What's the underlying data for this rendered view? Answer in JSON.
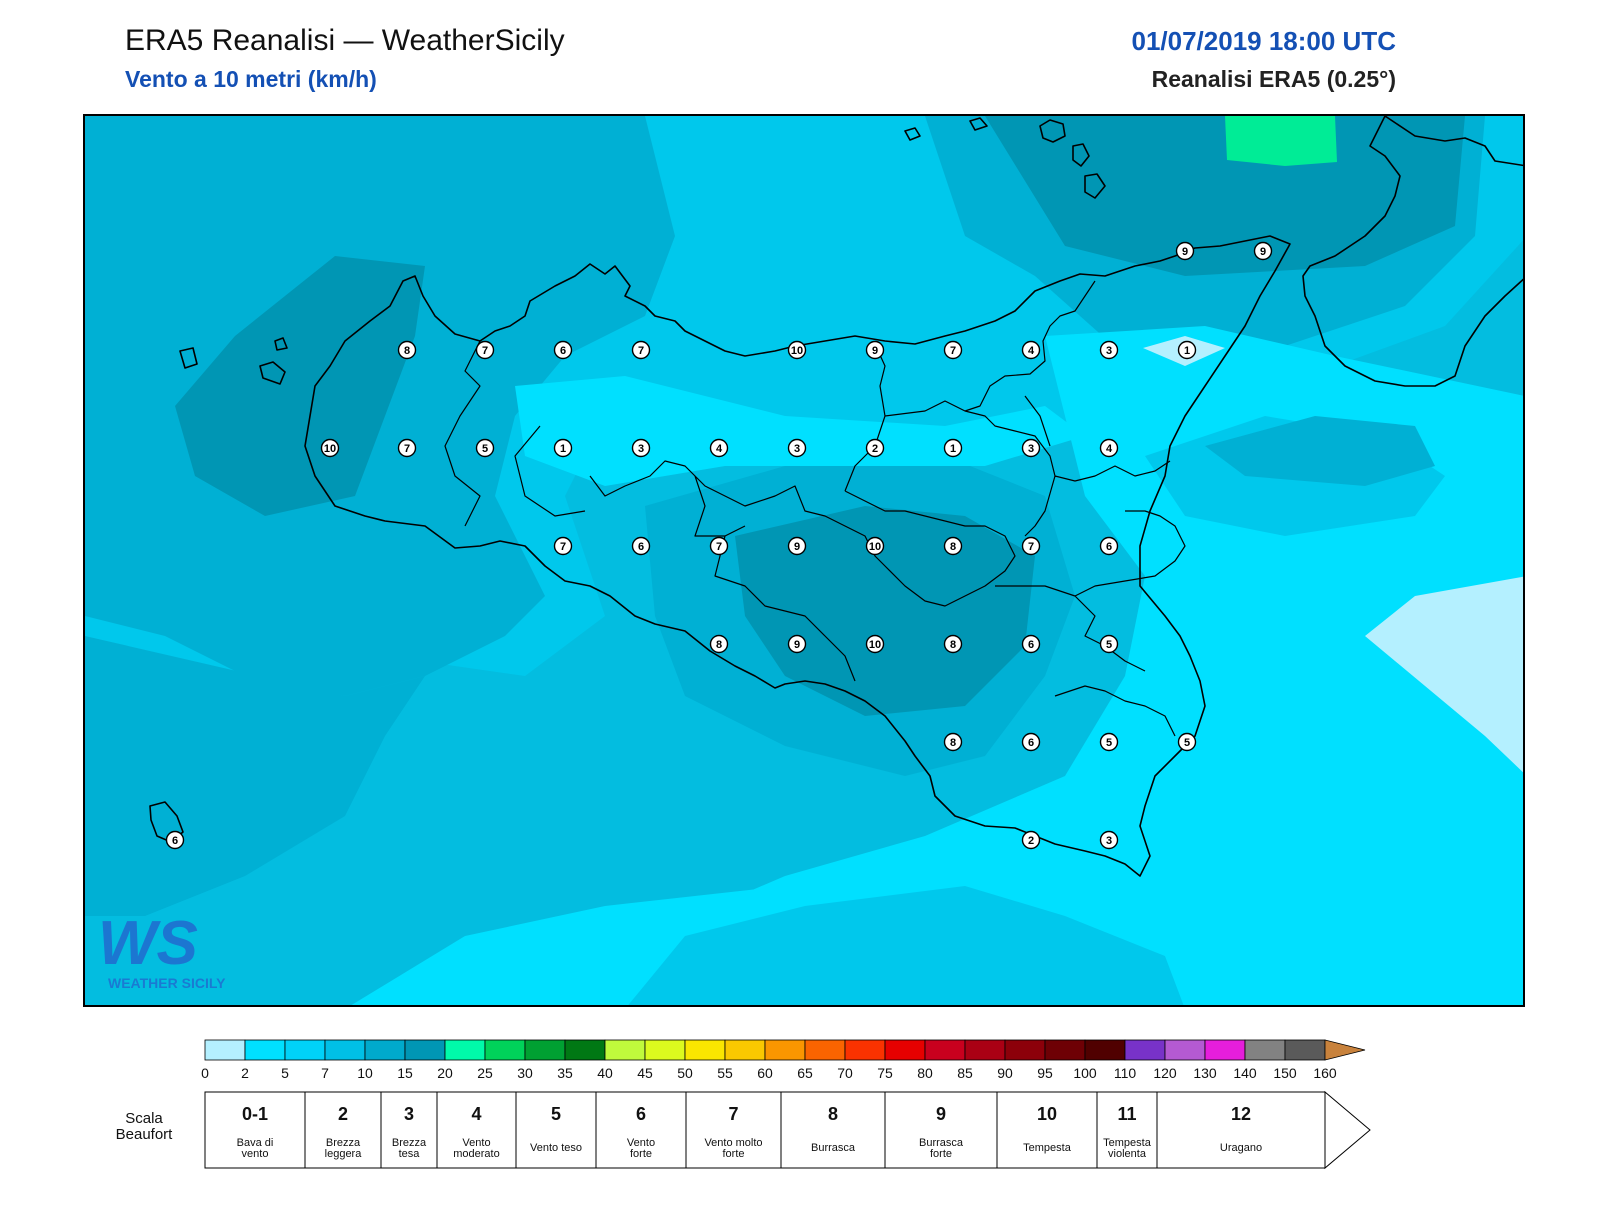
{
  "header": {
    "title": "ERA5 Reanalisi — WeatherSicily",
    "subtitle": "Vento a 10 metri (km/h)",
    "datetime": "01/07/2019 18:00 UTC",
    "source": "Reanalisi ERA5 (0.25°)"
  },
  "logo": {
    "mark": "WS",
    "text": "WEATHER SICILY"
  },
  "colors": {
    "sea_base": "#03bde0",
    "calm": "#b4f0ff",
    "light": "#00e0ff",
    "moderate": "#00c8ec",
    "fresh": "#00b0d4",
    "strong": "#0096b4",
    "gale": "#00ec96",
    "coastline": "#000000"
  },
  "stations": [
    {
      "v": "8"
    },
    {
      "v": "7"
    },
    {
      "v": "6"
    },
    {
      "v": "7"
    },
    {
      "v": "10"
    },
    {
      "v": "9"
    },
    {
      "v": "7"
    },
    {
      "v": "4"
    },
    {
      "v": "3"
    },
    {
      "v": "1"
    },
    {
      "v": "10"
    },
    {
      "v": "7"
    },
    {
      "v": "5"
    },
    {
      "v": "1"
    },
    {
      "v": "3"
    },
    {
      "v": "4"
    },
    {
      "v": "3"
    },
    {
      "v": "2"
    },
    {
      "v": "1"
    },
    {
      "v": "3"
    },
    {
      "v": "4"
    },
    {
      "v": "7"
    },
    {
      "v": "6"
    },
    {
      "v": "7"
    },
    {
      "v": "9"
    },
    {
      "v": "10"
    },
    {
      "v": "8"
    },
    {
      "v": "7"
    },
    {
      "v": "6"
    },
    {
      "v": "8"
    },
    {
      "v": "9"
    },
    {
      "v": "10"
    },
    {
      "v": "8"
    },
    {
      "v": "6"
    },
    {
      "v": "5"
    },
    {
      "v": "8"
    },
    {
      "v": "6"
    },
    {
      "v": "5"
    },
    {
      "v": "5"
    },
    {
      "v": "2"
    },
    {
      "v": "3"
    },
    {
      "v": "9"
    },
    {
      "v": "9"
    },
    {
      "v": "6"
    }
  ],
  "legend": {
    "ticks": [
      "0",
      "2",
      "5",
      "7",
      "10",
      "15",
      "20",
      "25",
      "30",
      "35",
      "40",
      "45",
      "50",
      "55",
      "60",
      "65",
      "70",
      "75",
      "80",
      "85",
      "90",
      "95",
      "100",
      "110",
      "120",
      "130",
      "140",
      "150",
      "160"
    ],
    "colors": [
      "#b4f0ff",
      "#00e0ff",
      "#00d2f8",
      "#00c0e6",
      "#00aacc",
      "#0096b4",
      "#00faaa",
      "#00d25a",
      "#00a032",
      "#007814",
      "#c0fa3c",
      "#dcfa1e",
      "#fae600",
      "#fac800",
      "#fa9600",
      "#fa6400",
      "#fa3200",
      "#e60000",
      "#c8001e",
      "#aa0014",
      "#8c000a",
      "#6e0005",
      "#500000",
      "#7832c8",
      "#b45ad2",
      "#e61edc",
      "#828282",
      "#5a5a5a",
      "#000000",
      "#8c4628",
      "#c8823c"
    ],
    "scala_title_1": "Scala",
    "scala_title_2": "Beaufort",
    "beaufort": [
      {
        "num": "0-1",
        "l1": "Bava di",
        "l2": "vento"
      },
      {
        "num": "2",
        "l1": "Brezza",
        "l2": "leggera"
      },
      {
        "num": "3",
        "l1": "Brezza",
        "l2": "tesa"
      },
      {
        "num": "4",
        "l1": "Vento",
        "l2": "moderato"
      },
      {
        "num": "5",
        "l1": "Vento teso",
        "l2": ""
      },
      {
        "num": "6",
        "l1": "Vento",
        "l2": "forte"
      },
      {
        "num": "7",
        "l1": "Vento molto",
        "l2": "forte"
      },
      {
        "num": "8",
        "l1": "Burrasca",
        "l2": ""
      },
      {
        "num": "9",
        "l1": "Burrasca",
        "l2": "forte"
      },
      {
        "num": "10",
        "l1": "Tempesta",
        "l2": ""
      },
      {
        "num": "11",
        "l1": "Tempesta",
        "l2": "violenta"
      },
      {
        "num": "12",
        "l1": "Uragano",
        "l2": ""
      }
    ]
  }
}
